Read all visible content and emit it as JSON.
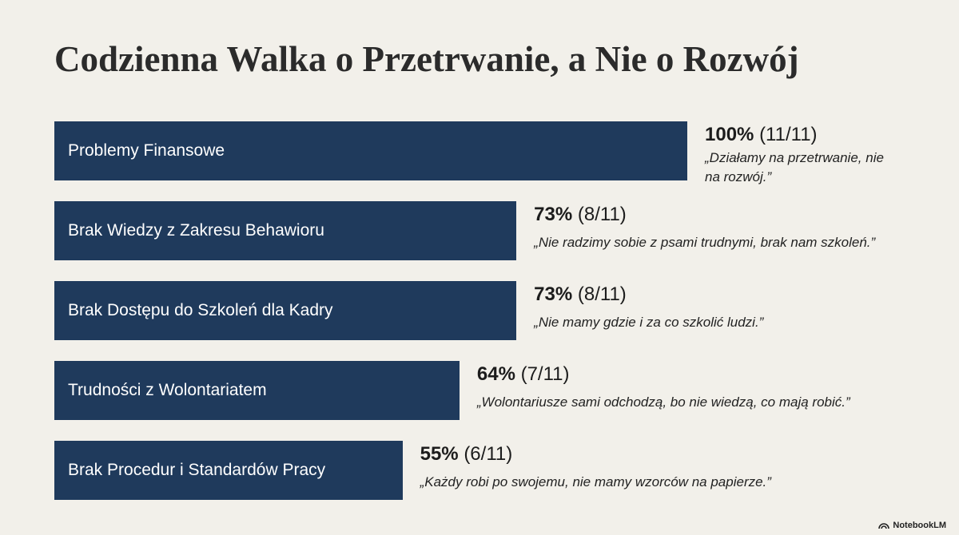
{
  "chart_data": {
    "type": "bar",
    "orientation": "horizontal",
    "title": "Codzienna Walka o Przetrwanie, a Nie o Rozwój",
    "categories": [
      "Problemy Finansowe",
      "Brak Wiedzy z Zakresu Behawioru",
      "Brak Dostępu do Szkoleń dla Kadry",
      "Trudności z Wolontariatem",
      "Brak Procedur i Standardów Pracy"
    ],
    "values": [
      100,
      73,
      73,
      64,
      55
    ],
    "value_labels": [
      "100%",
      "73%",
      "73%",
      "64%",
      "55%"
    ],
    "counts": [
      "(11/11)",
      "(8/11)",
      "(8/11)",
      "(7/11)",
      "(6/11)"
    ],
    "quotes": [
      "„Działamy na przetrwanie, nie na rozwój.”",
      "„Nie radzimy sobie z psami trudnymi, brak nam szkoleń.”",
      "„Nie mamy gdzie i za co szkolić ludzi.”",
      "„Wolontariusze sami odchodzą, bo nie wiedzą, co mają robić.”",
      "„Każdy robi po swojemu, nie mamy wzorców na papierze.”"
    ],
    "color": "#1f3a5c",
    "xlim": [
      0,
      100
    ]
  },
  "footer": "NotebookLM"
}
